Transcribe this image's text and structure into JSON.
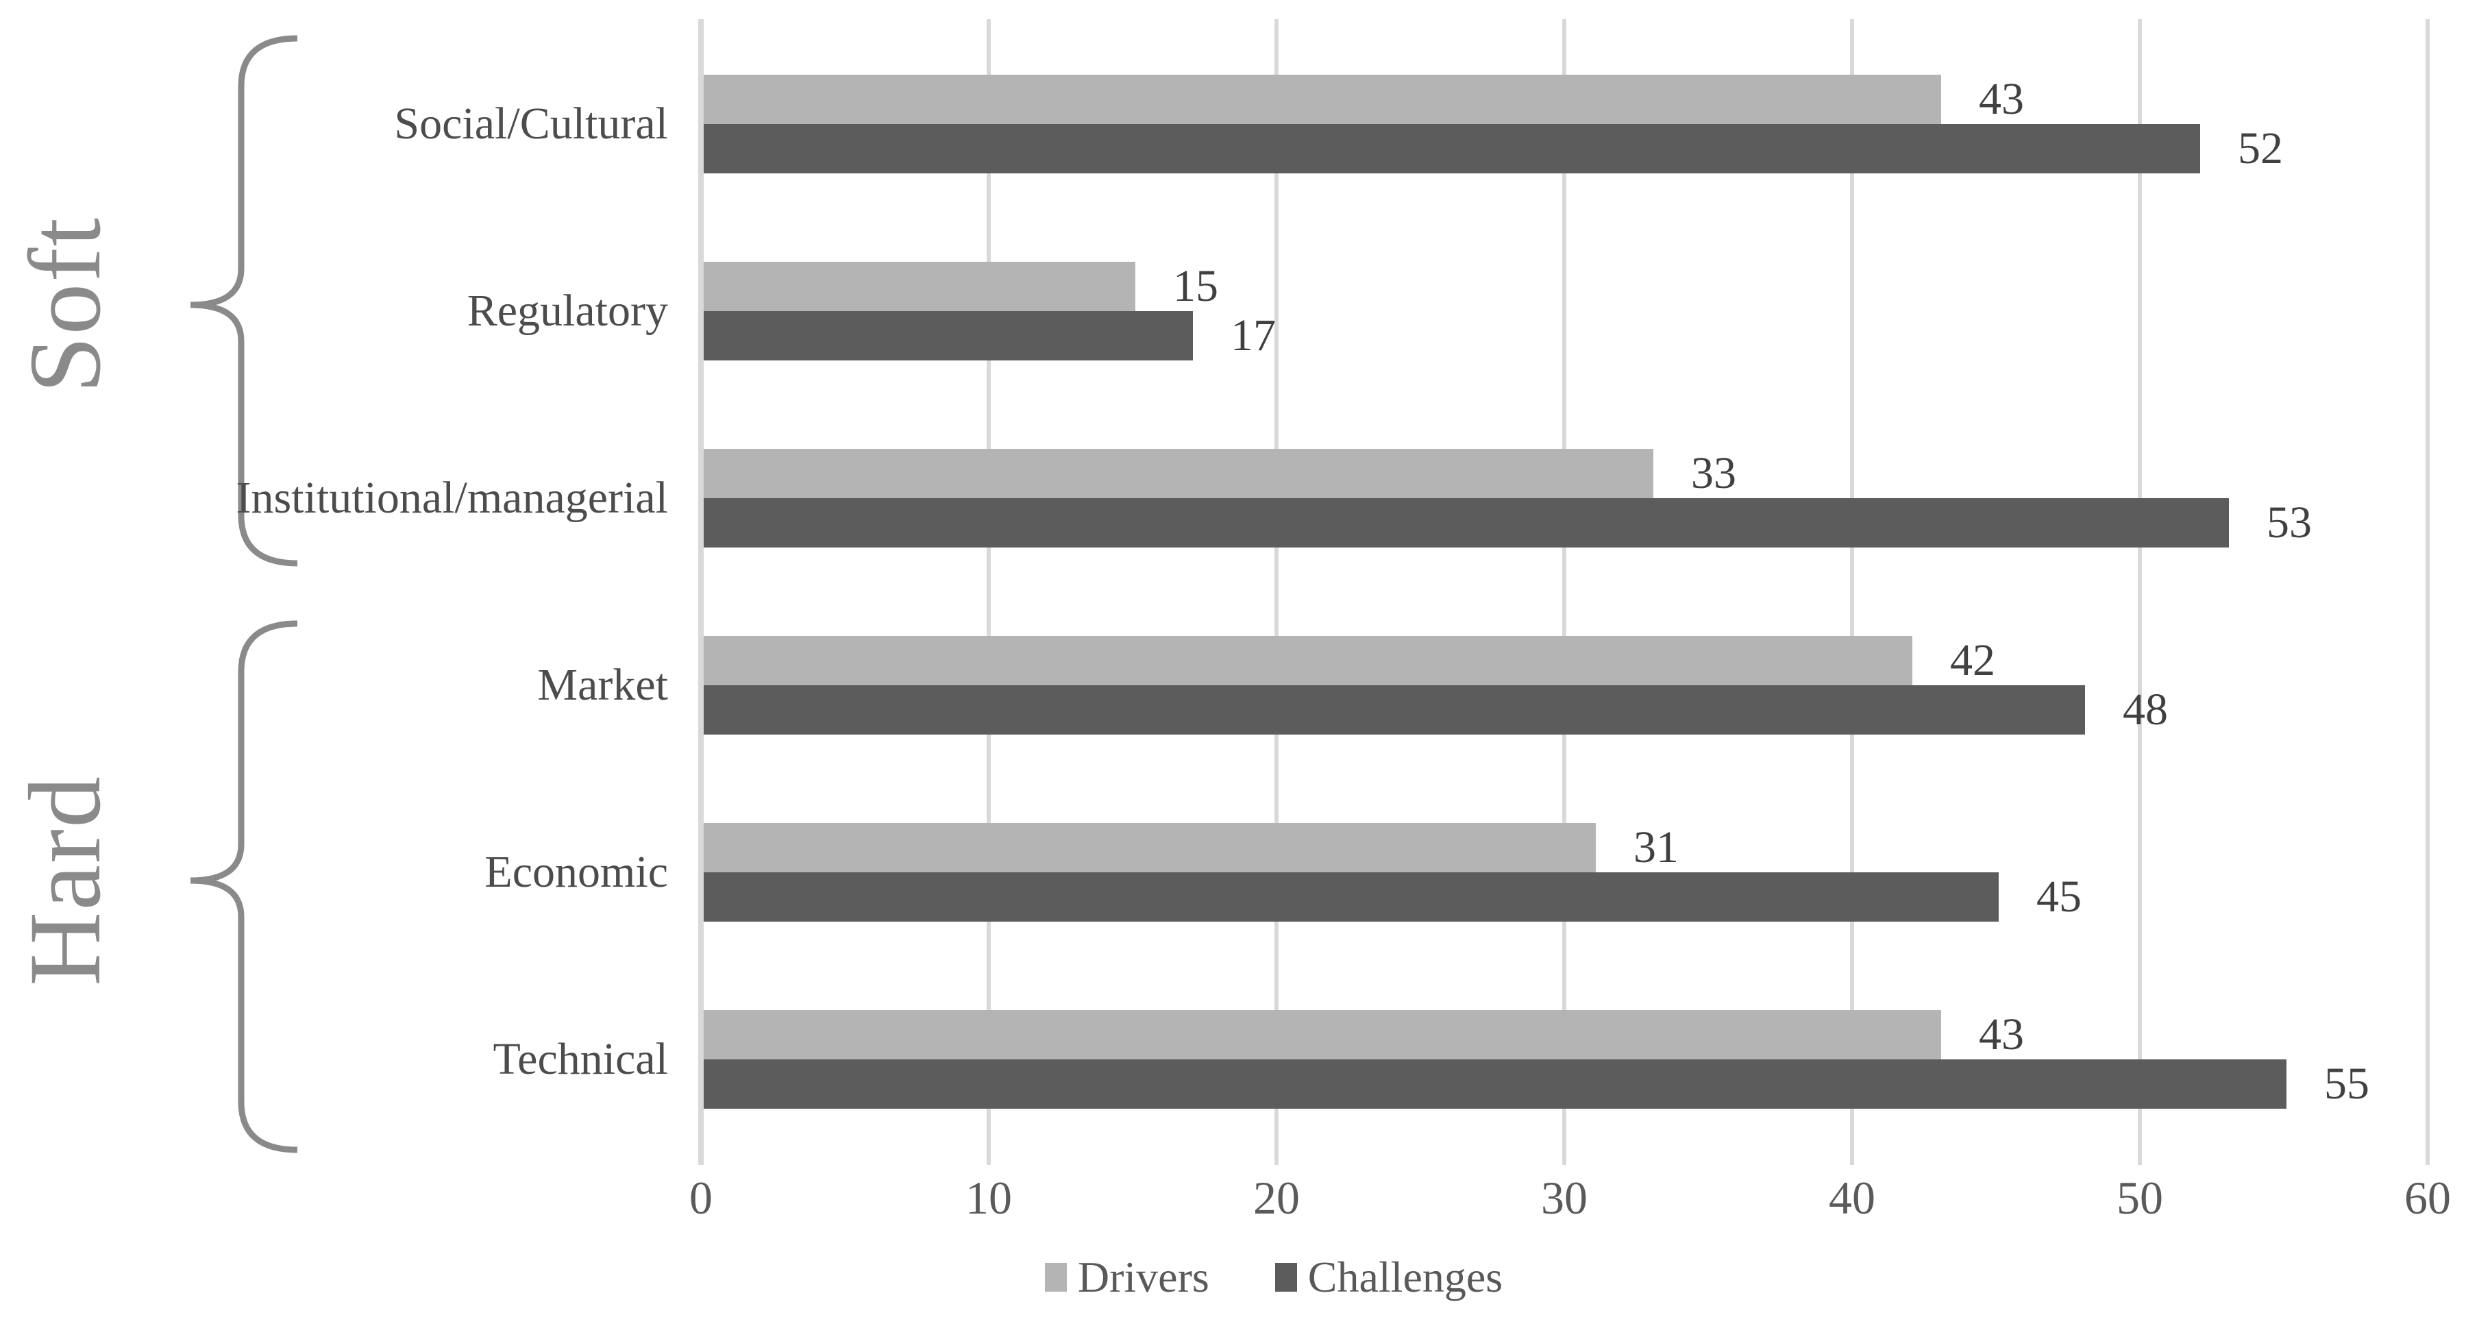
{
  "chart_data": {
    "type": "bar",
    "orientation": "horizontal",
    "title": "",
    "xlabel": "",
    "ylabel": "",
    "categories": [
      "Social/Cultural",
      "Regulatory",
      "Institutional/managerial",
      "Market",
      "Economic",
      "Technical"
    ],
    "series": [
      {
        "name": "Drivers",
        "color": "#b4b4b4",
        "values": [
          43,
          15,
          33,
          42,
          31,
          43
        ]
      },
      {
        "name": "Challenges",
        "color": "#5c5c5c",
        "values": [
          52,
          17,
          53,
          48,
          45,
          55
        ]
      }
    ],
    "category_groups": [
      {
        "label": "Soft",
        "categories": [
          "Social/Cultural",
          "Regulatory",
          "Institutional/managerial"
        ]
      },
      {
        "label": "Hard",
        "categories": [
          "Market",
          "Economic",
          "Technical"
        ]
      }
    ],
    "xlim": [
      0,
      60
    ],
    "xticks": [
      0,
      10,
      20,
      30,
      40,
      50,
      60
    ],
    "grid": "vertical",
    "gridline_color": "#d9d9d9",
    "value_labels_shown": true,
    "legend_position": "bottom"
  },
  "text_colors": {
    "category_label": "#4c4c4c",
    "value_label": "#404040",
    "tick_label": "#5a5a5a",
    "legend_label": "#595959",
    "group_label": "#8a8a8a"
  }
}
